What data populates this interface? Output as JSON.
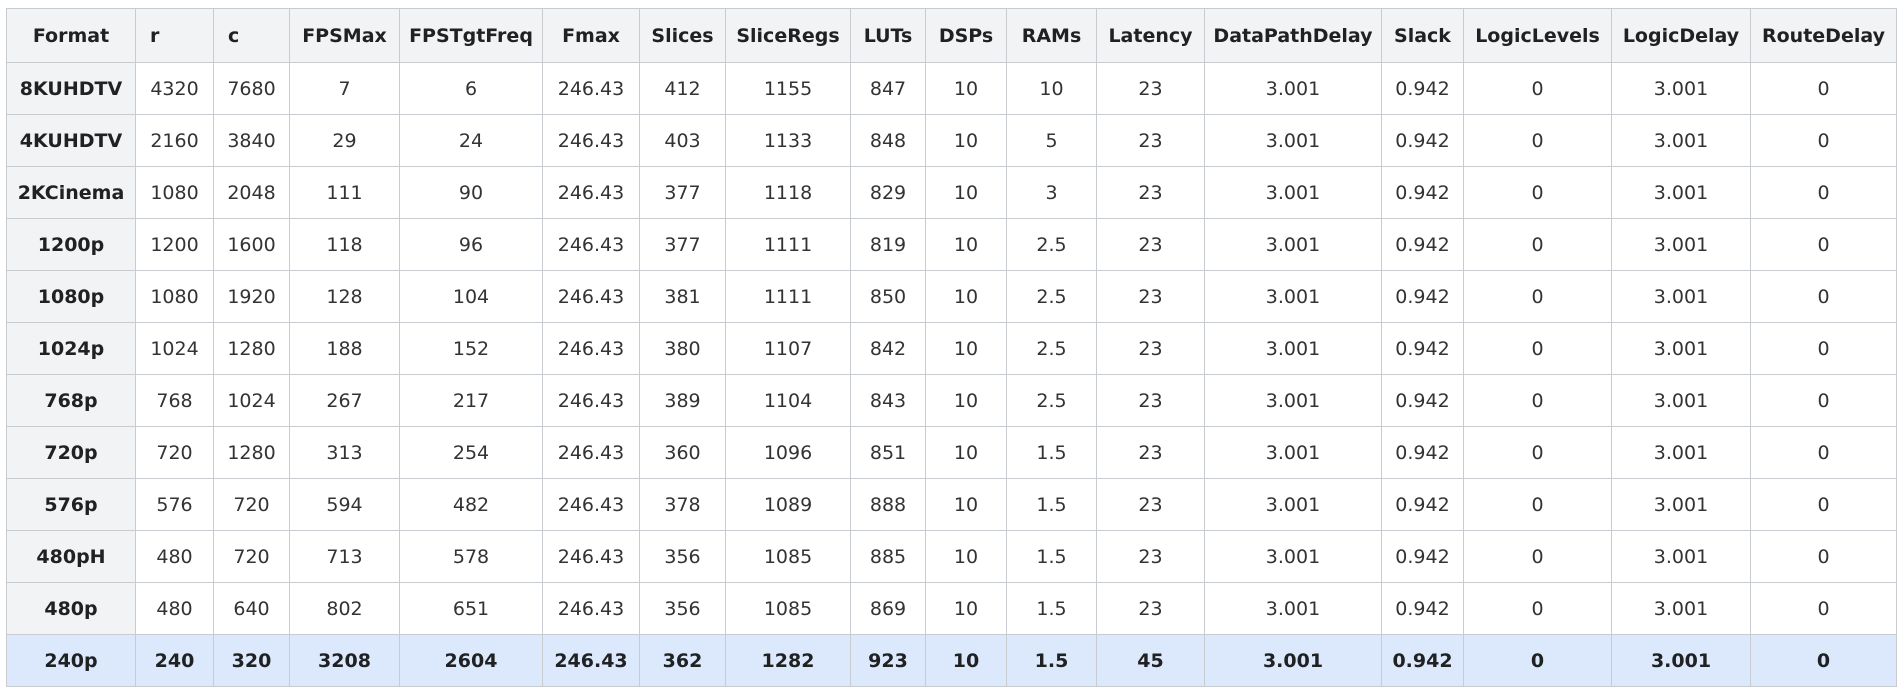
{
  "table": {
    "header": [
      "Format",
      "r",
      "c",
      "FPSMax",
      "FPSTgtFreq",
      "Fmax",
      "Slices",
      "SliceRegs",
      "LUTs",
      "DSPs",
      "RAMs",
      "Latency",
      "DataPathDelay",
      "Slack",
      "LogicLevels",
      "LogicDelay",
      "RouteDelay"
    ],
    "rows": [
      [
        "8KUHDTV",
        4320,
        7680,
        7,
        6,
        246.43,
        412,
        1155,
        847,
        10,
        10,
        23,
        3.001,
        0.942,
        0,
        3.001,
        0
      ],
      [
        "4KUHDTV",
        2160,
        3840,
        29,
        24,
        246.43,
        403,
        1133,
        848,
        10,
        5,
        23,
        3.001,
        0.942,
        0,
        3.001,
        0
      ],
      [
        "2KCinema",
        1080,
        2048,
        111,
        90,
        246.43,
        377,
        1118,
        829,
        10,
        3,
        23,
        3.001,
        0.942,
        0,
        3.001,
        0
      ],
      [
        "1200p",
        1200,
        1600,
        118,
        96,
        246.43,
        377,
        1111,
        819,
        10,
        2.5,
        23,
        3.001,
        0.942,
        0,
        3.001,
        0
      ],
      [
        "1080p",
        1080,
        1920,
        128,
        104,
        246.43,
        381,
        1111,
        850,
        10,
        2.5,
        23,
        3.001,
        0.942,
        0,
        3.001,
        0
      ],
      [
        "1024p",
        1024,
        1280,
        188,
        152,
        246.43,
        380,
        1107,
        842,
        10,
        2.5,
        23,
        3.001,
        0.942,
        0,
        3.001,
        0
      ],
      [
        "768p",
        768,
        1024,
        267,
        217,
        246.43,
        389,
        1104,
        843,
        10,
        2.5,
        23,
        3.001,
        0.942,
        0,
        3.001,
        0
      ],
      [
        "720p",
        720,
        1280,
        313,
        254,
        246.43,
        360,
        1096,
        851,
        10,
        1.5,
        23,
        3.001,
        0.942,
        0,
        3.001,
        0
      ],
      [
        "576p",
        576,
        720,
        594,
        482,
        246.43,
        378,
        1089,
        888,
        10,
        1.5,
        23,
        3.001,
        0.942,
        0,
        3.001,
        0
      ],
      [
        "480pH",
        480,
        720,
        713,
        578,
        246.43,
        356,
        1085,
        885,
        10,
        1.5,
        23,
        3.001,
        0.942,
        0,
        3.001,
        0
      ],
      [
        "480p",
        480,
        640,
        802,
        651,
        246.43,
        356,
        1085,
        869,
        10,
        1.5,
        23,
        3.001,
        0.942,
        0,
        3.001,
        0
      ],
      [
        "240p",
        240,
        320,
        3208,
        2604,
        246.43,
        362,
        1282,
        923,
        10,
        1.5,
        45,
        3.001,
        0.942,
        0,
        3.001,
        0
      ]
    ]
  }
}
